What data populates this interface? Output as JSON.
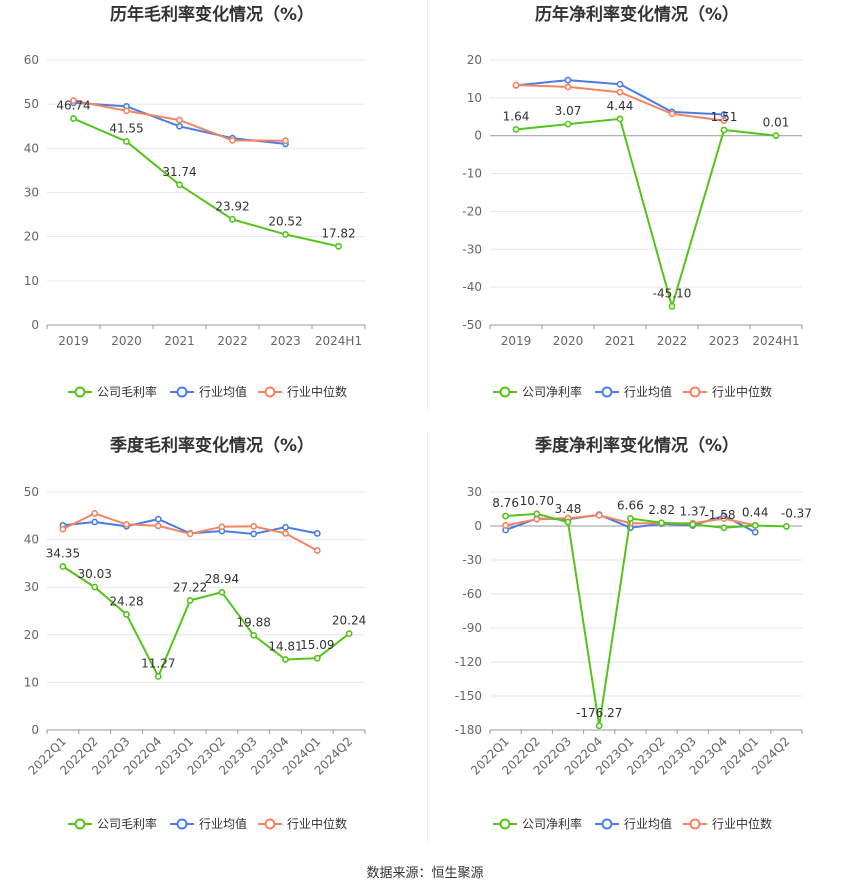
{
  "source": "数据来源：恒生聚源",
  "colors": {
    "company": "#52c41a",
    "industry_avg": "#4a7de8",
    "industry_median": "#f4845f",
    "grid": "#e6e6e6",
    "axis_text": "#666666",
    "title": "#333333"
  },
  "chart_data": [
    {
      "type": "line",
      "title": "历年毛利率变化情况（%）",
      "categories": [
        "2019",
        "2020",
        "2021",
        "2022",
        "2023",
        "2024H1"
      ],
      "ylim": [
        0,
        60
      ],
      "yticks": [
        0,
        10,
        20,
        30,
        40,
        50,
        60
      ],
      "series": [
        {
          "name": "公司毛利率",
          "role": "company",
          "values": [
            46.74,
            41.55,
            31.74,
            23.92,
            20.52,
            17.82
          ],
          "labels": [
            "46.74",
            "41.55",
            "31.74",
            "23.92",
            "20.52",
            "17.82"
          ]
        },
        {
          "name": "行业均值",
          "role": "industry_avg",
          "values": [
            50.3,
            49.5,
            45.0,
            42.3,
            41.0,
            null
          ]
        },
        {
          "name": "行业中位数",
          "role": "industry_median",
          "values": [
            50.8,
            48.5,
            46.4,
            41.8,
            41.7,
            null
          ]
        }
      ],
      "grid": true,
      "legend": "bottom"
    },
    {
      "type": "line",
      "title": "历年净利率变化情况（%）",
      "categories": [
        "2019",
        "2020",
        "2021",
        "2022",
        "2023",
        "2024H1"
      ],
      "ylim": [
        -50,
        20
      ],
      "yticks": [
        -50,
        -40,
        -30,
        -20,
        -10,
        0,
        10,
        20
      ],
      "series": [
        {
          "name": "公司净利率",
          "role": "company",
          "values": [
            1.64,
            3.07,
            4.44,
            -45.1,
            1.51,
            0.01
          ],
          "labels": [
            "1.64",
            "3.07",
            "4.44",
            "-45.10",
            "1.51",
            "0.01"
          ]
        },
        {
          "name": "行业均值",
          "role": "industry_avg",
          "values": [
            13.3,
            14.7,
            13.6,
            6.3,
            5.6,
            null
          ]
        },
        {
          "name": "行业中位数",
          "role": "industry_median",
          "values": [
            13.4,
            12.9,
            11.5,
            5.8,
            4.0,
            null
          ]
        }
      ],
      "grid": true,
      "legend": "bottom"
    },
    {
      "type": "line",
      "title": "季度毛利率变化情况（%）",
      "categories": [
        "2022Q1",
        "2022Q2",
        "2022Q3",
        "2022Q4",
        "2023Q1",
        "2023Q2",
        "2023Q3",
        "2023Q4",
        "2024Q1",
        "2024Q2"
      ],
      "ylim": [
        0,
        50
      ],
      "yticks": [
        0,
        10,
        20,
        30,
        40,
        50
      ],
      "series": [
        {
          "name": "公司毛利率",
          "role": "company",
          "values": [
            34.35,
            30.03,
            24.28,
            11.27,
            27.22,
            28.94,
            19.88,
            14.81,
            15.09,
            20.24
          ],
          "labels": [
            "34.35",
            "30.03",
            "24.28",
            "11.27",
            "27.22",
            "28.94",
            "19.88",
            "14.81",
            "15.09",
            "20.24"
          ]
        },
        {
          "name": "行业均值",
          "role": "industry_avg",
          "values": [
            43.0,
            43.7,
            42.8,
            44.3,
            41.3,
            41.8,
            41.2,
            42.6,
            41.3,
            null
          ]
        },
        {
          "name": "行业中位数",
          "role": "industry_median",
          "values": [
            42.2,
            45.5,
            43.2,
            42.9,
            41.2,
            42.7,
            42.8,
            41.3,
            37.7,
            null
          ]
        }
      ],
      "grid": true,
      "legend": "bottom"
    },
    {
      "type": "line",
      "title": "季度净利率变化情况（%）",
      "categories": [
        "2022Q1",
        "2022Q2",
        "2022Q3",
        "2022Q4",
        "2023Q1",
        "2023Q2",
        "2023Q3",
        "2023Q4",
        "2024Q1",
        "2024Q2"
      ],
      "ylim": [
        -180,
        30
      ],
      "yticks": [
        -180,
        -150,
        -120,
        -90,
        -60,
        -30,
        0,
        30
      ],
      "series": [
        {
          "name": "公司净利率",
          "role": "company",
          "values": [
            8.76,
            10.7,
            3.48,
            -176.27,
            6.66,
            2.82,
            1.37,
            -1.58,
            0.44,
            -0.37
          ],
          "labels": [
            "8.76",
            "10.70",
            "3.48",
            "-176.27",
            "6.66",
            "2.82",
            "1.37",
            "-1.58",
            "0.44",
            "-0.37"
          ]
        },
        {
          "name": "行业均值",
          "role": "industry_avg",
          "values": [
            -3.5,
            6.5,
            6.0,
            10.0,
            -1.5,
            2.0,
            0.5,
            9.0,
            -5.5,
            null
          ]
        },
        {
          "name": "行业中位数",
          "role": "industry_median",
          "values": [
            0.5,
            6.0,
            7.0,
            9.5,
            2.5,
            2.5,
            2.5,
            6.5,
            0.5,
            null
          ]
        }
      ],
      "grid": true,
      "legend": "bottom"
    }
  ]
}
